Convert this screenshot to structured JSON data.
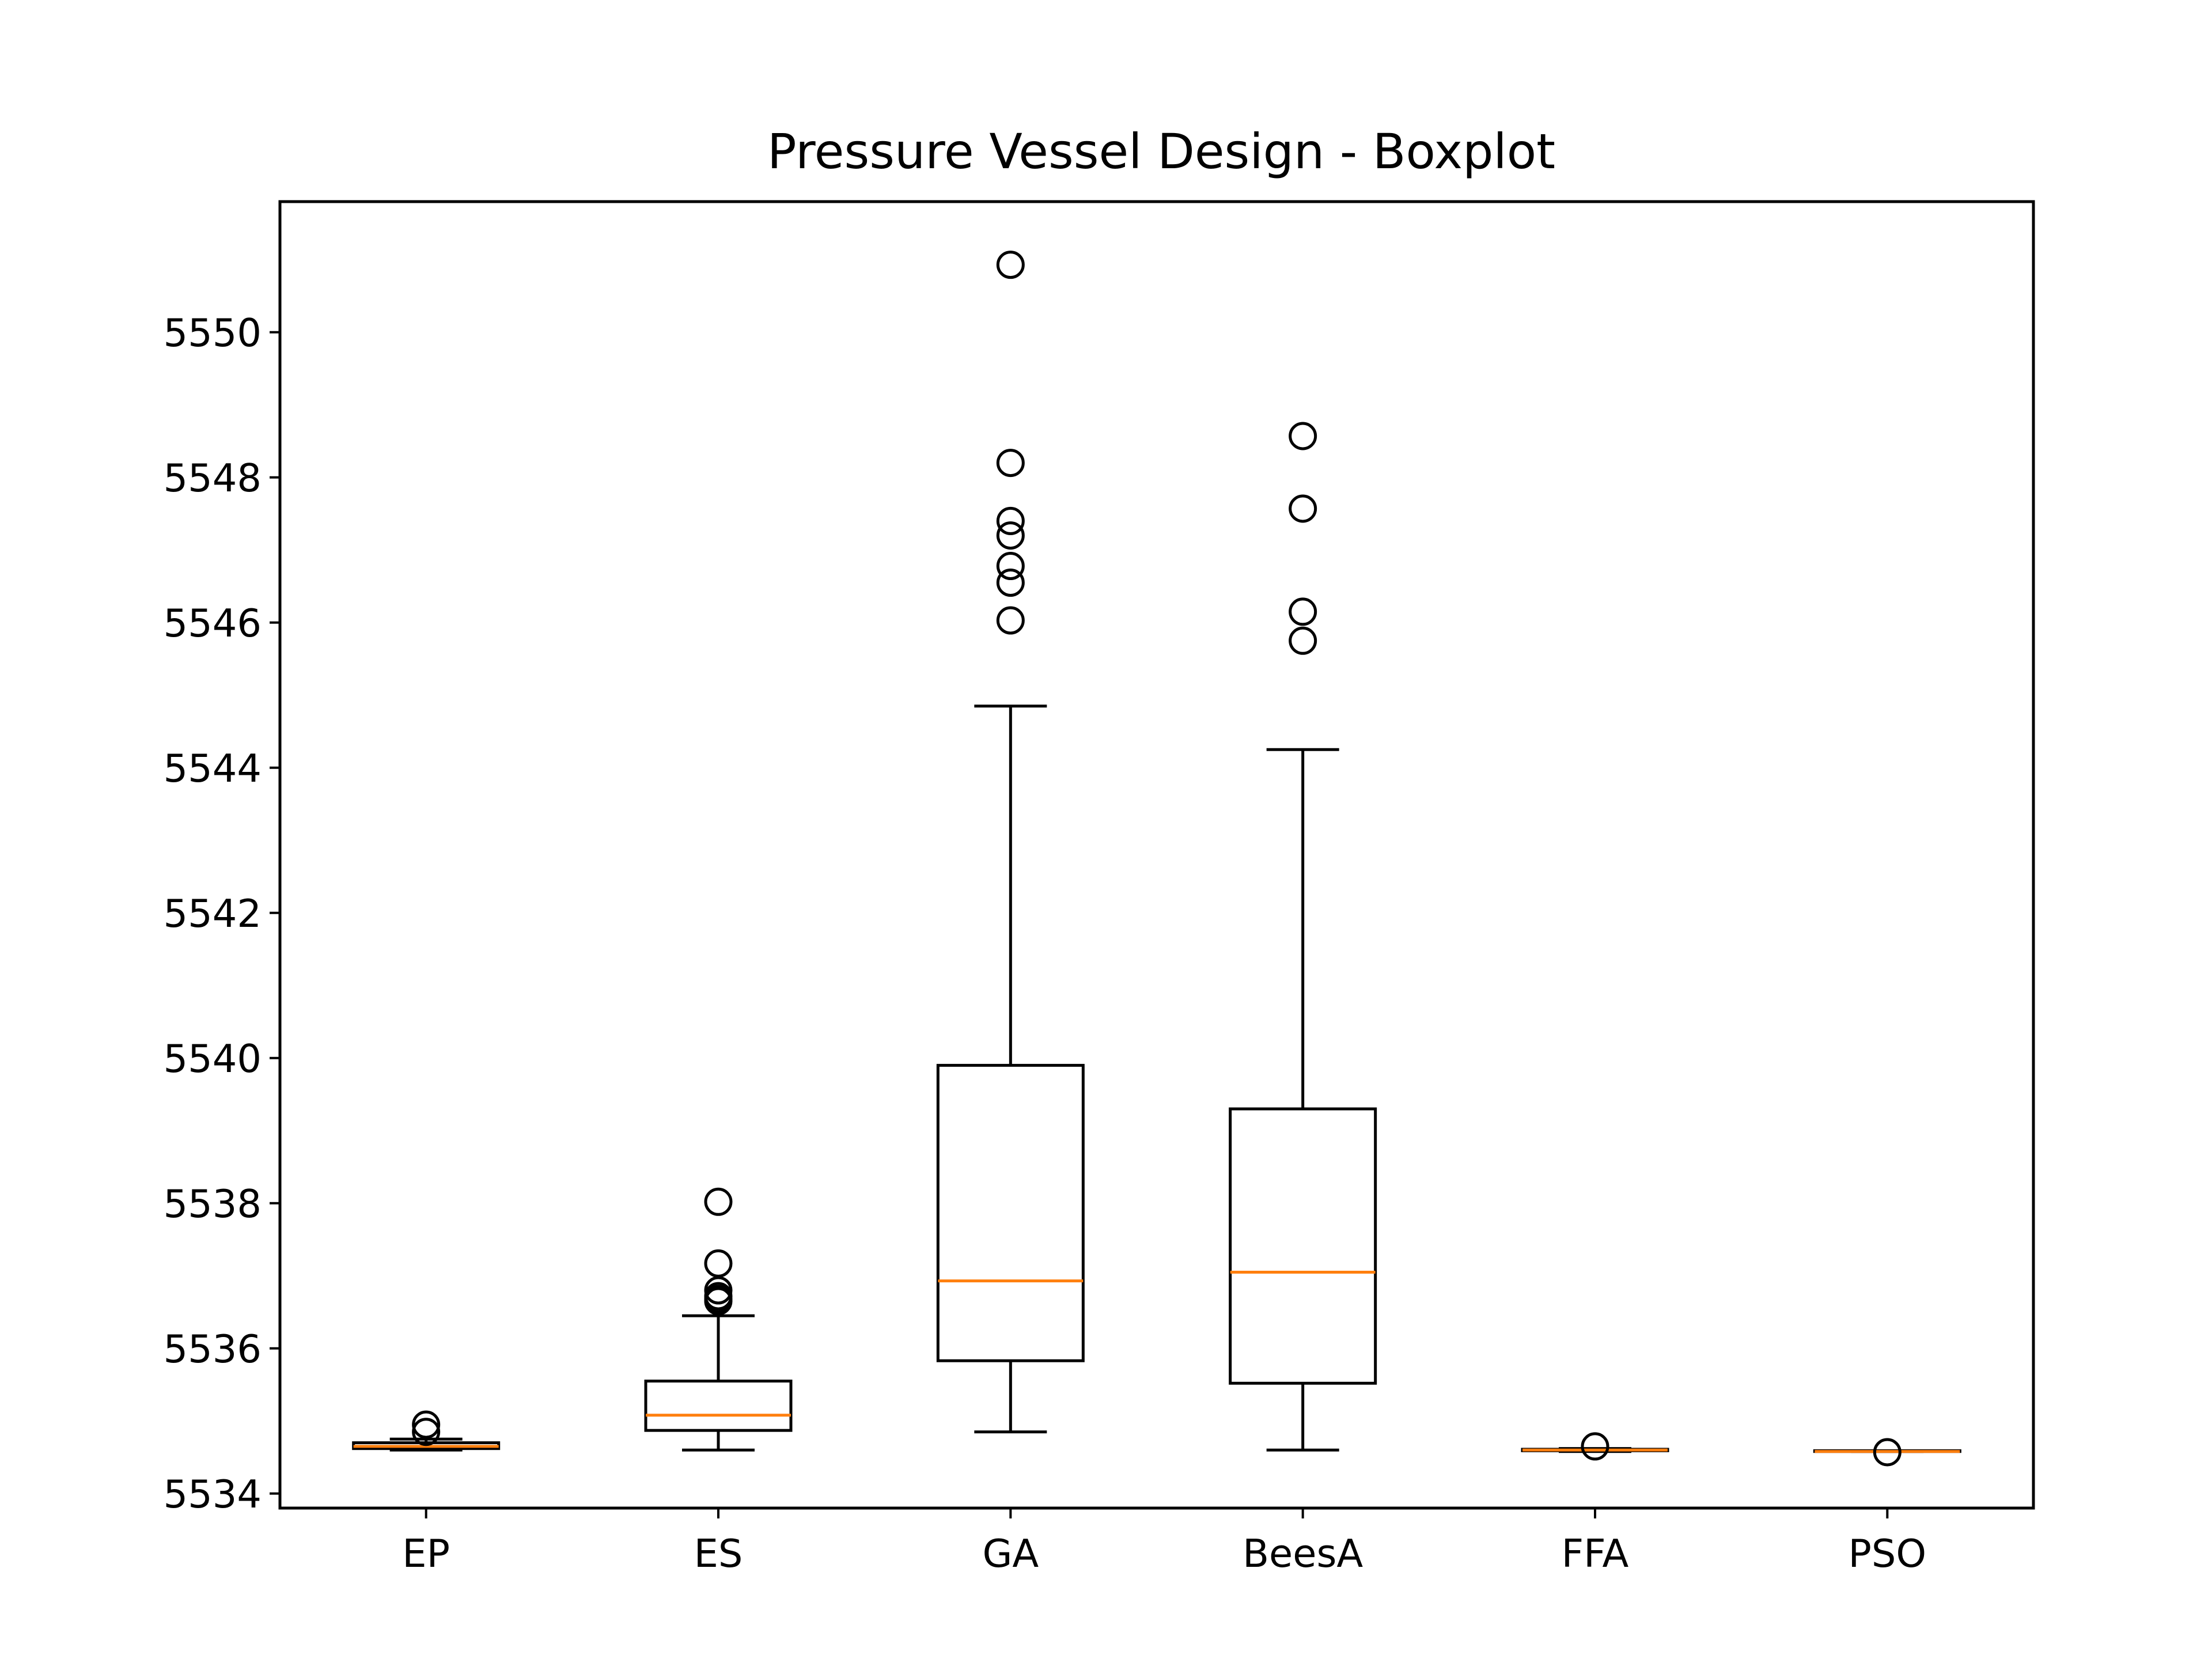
{
  "chart_data": {
    "type": "boxplot",
    "title": "Pressure Vessel Design - Boxplot",
    "xlabel": "",
    "ylabel": "",
    "categories": [
      "EP",
      "ES",
      "GA",
      "BeesA",
      "FFA",
      "PSO"
    ],
    "ylim": [
      5533.8,
      5551.8
    ],
    "yticks": [
      5534,
      5536,
      5538,
      5540,
      5542,
      5544,
      5546,
      5548,
      5550
    ],
    "grid": false,
    "legend": "none",
    "boxes": [
      {
        "label": "EP",
        "whisker_low": 5534.6,
        "q1": 5534.62,
        "median": 5534.65,
        "q3": 5534.7,
        "whisker_high": 5534.75,
        "outliers": [
          5534.95,
          5534.85
        ]
      },
      {
        "label": "ES",
        "whisker_low": 5534.6,
        "q1": 5534.87,
        "median": 5535.08,
        "q3": 5535.55,
        "whisker_high": 5536.45,
        "outliers": [
          5538.02,
          5537.17,
          5536.8,
          5536.72,
          5536.68,
          5536.65
        ]
      },
      {
        "label": "GA",
        "whisker_low": 5534.85,
        "q1": 5535.83,
        "median": 5536.93,
        "q3": 5539.9,
        "whisker_high": 5544.85,
        "outliers": [
          5550.93,
          5548.2,
          5547.4,
          5547.2,
          5546.78,
          5546.55,
          5546.03
        ]
      },
      {
        "label": "BeesA",
        "whisker_low": 5534.6,
        "q1": 5535.52,
        "median": 5537.05,
        "q3": 5539.3,
        "whisker_high": 5544.25,
        "outliers": [
          5548.57,
          5547.57,
          5546.15,
          5545.75
        ]
      },
      {
        "label": "FFA",
        "whisker_low": 5534.58,
        "q1": 5534.59,
        "median": 5534.6,
        "q3": 5534.61,
        "whisker_high": 5534.62,
        "outliers": [
          5534.65
        ]
      },
      {
        "label": "PSO",
        "whisker_low": 5534.58,
        "q1": 5534.58,
        "median": 5534.58,
        "q3": 5534.59,
        "whisker_high": 5534.59,
        "outliers": [
          5534.57
        ]
      }
    ],
    "colors": {
      "box": "#000000",
      "median": "#ff7f0e",
      "outlier": "#000000"
    }
  }
}
